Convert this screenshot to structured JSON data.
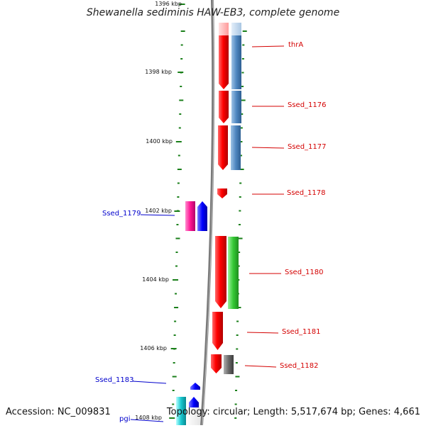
{
  "title": "Shewanella sediminis HAW-EB3, complete genome",
  "footer": {
    "accession": "Accession: NC_009831",
    "topology": "Topology: circular; Length: 5,517,674 bp; Genes: 4,661"
  },
  "colors": {
    "plus_label": "#d40000",
    "minus_label": "#0000cc",
    "tick": "#1a7f1a",
    "backbone": "#808080"
  },
  "kbp_labels": [
    "1396 kbp",
    "1398 kbp",
    "1400 kbp",
    "1402 kbp",
    "1404 kbp",
    "1406 kbp",
    "1408 kbp"
  ],
  "genes_right": [
    {
      "id": "thrA",
      "label": "thrA"
    },
    {
      "id": "Ssed_1176",
      "label": "Ssed_1176"
    },
    {
      "id": "Ssed_1177",
      "label": "Ssed_1177"
    },
    {
      "id": "Ssed_1178",
      "label": "Ssed_1178"
    },
    {
      "id": "Ssed_1180",
      "label": "Ssed_1180"
    },
    {
      "id": "Ssed_1181",
      "label": "Ssed_1181"
    },
    {
      "id": "Ssed_1182",
      "label": "Ssed_1182"
    }
  ],
  "genes_left": [
    {
      "id": "Ssed_1179",
      "label": "Ssed_1179"
    },
    {
      "id": "Ssed_1183",
      "label": "Ssed_1183"
    },
    {
      "id": "pgi",
      "label": "pgi"
    }
  ]
}
